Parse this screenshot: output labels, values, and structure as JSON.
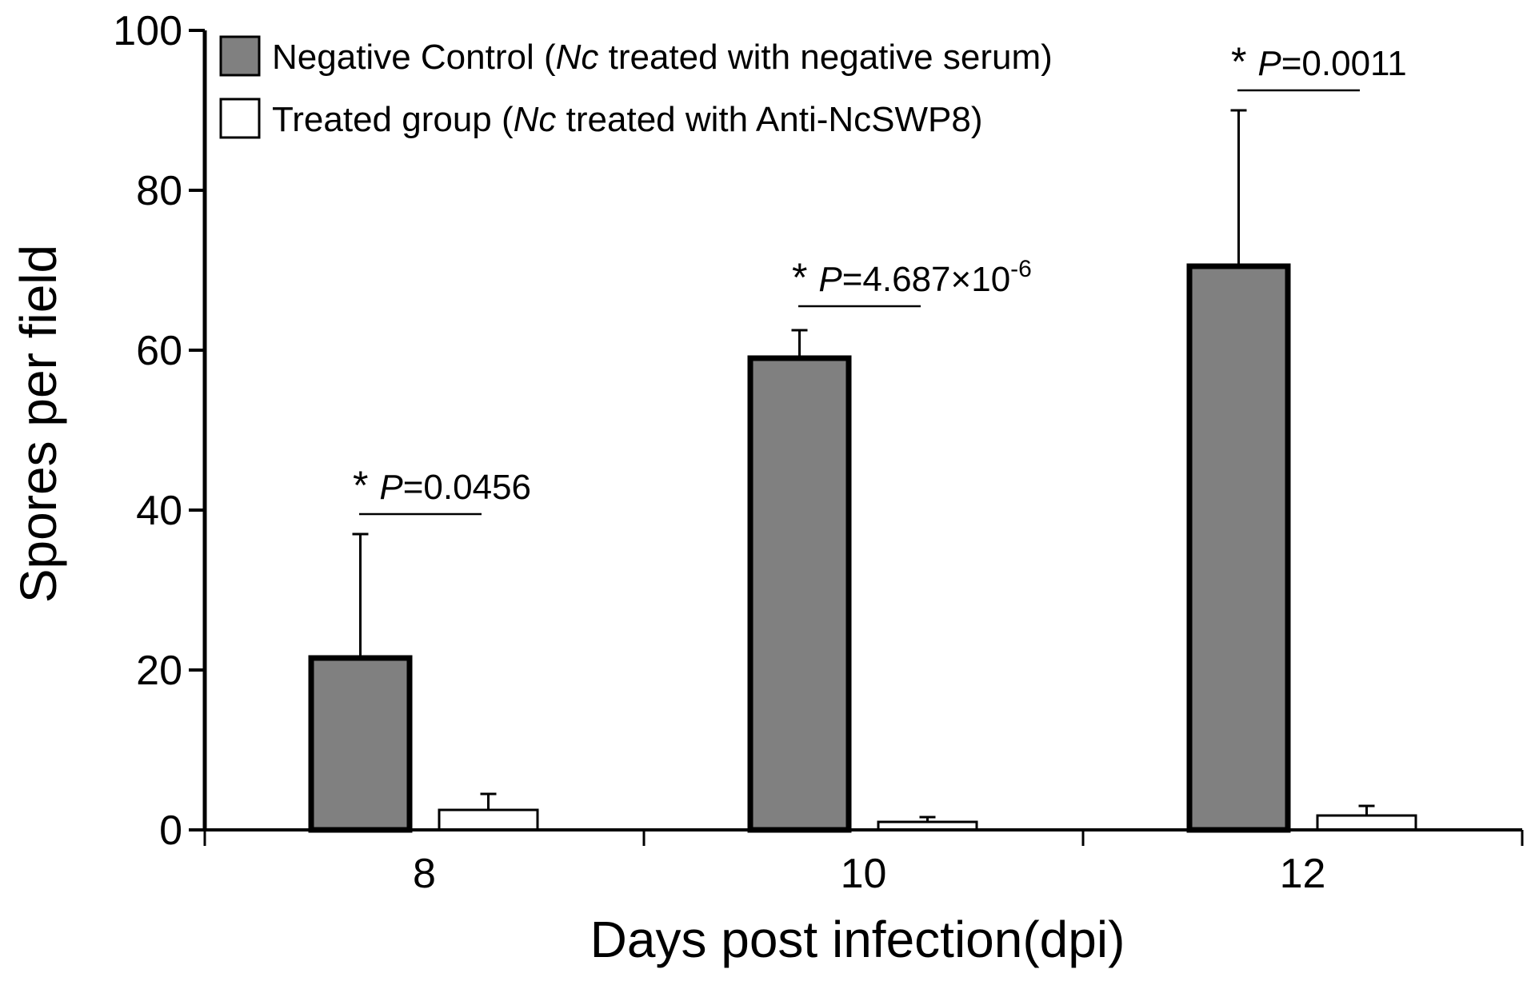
{
  "chart_data": {
    "type": "bar",
    "xlabel": "Days post infection(dpi)",
    "ylabel": "Spores per field",
    "ylim": [
      0,
      100
    ],
    "yticks": [
      "0",
      "20",
      "40",
      "60",
      "80",
      "100"
    ],
    "categories": [
      "8",
      "10",
      "12"
    ],
    "series": [
      {
        "name": "Negative Control",
        "legend_prefix": "Negative Control (",
        "legend_italic": "Nc",
        "legend_suffix": " treated with negative serum)",
        "color": "#808080",
        "values": [
          21.5,
          59,
          70.5
        ],
        "errors": [
          15.5,
          3.5,
          19.5
        ]
      },
      {
        "name": "Treated group",
        "legend_prefix": "Treated group (",
        "legend_italic": "Nc",
        "legend_suffix": " treated with Anti-NcSWP8)",
        "color": "#ffffff",
        "values": [
          2.5,
          1,
          1.8
        ],
        "errors": [
          2,
          0.6,
          1.2
        ]
      }
    ],
    "annotations": [
      {
        "star": "*",
        "p_label": "P",
        "text": "=0.0456",
        "exp": "",
        "line_y": 39.5,
        "text_y": 43
      },
      {
        "star": "*",
        "p_label": "P",
        "text": "=4.687×10",
        "exp": "-6",
        "line_y": 65.5,
        "text_y": 69
      },
      {
        "star": "*",
        "p_label": "P",
        "text": "=0.0011",
        "exp": "",
        "line_y": 92.5,
        "text_y": 96
      }
    ]
  }
}
